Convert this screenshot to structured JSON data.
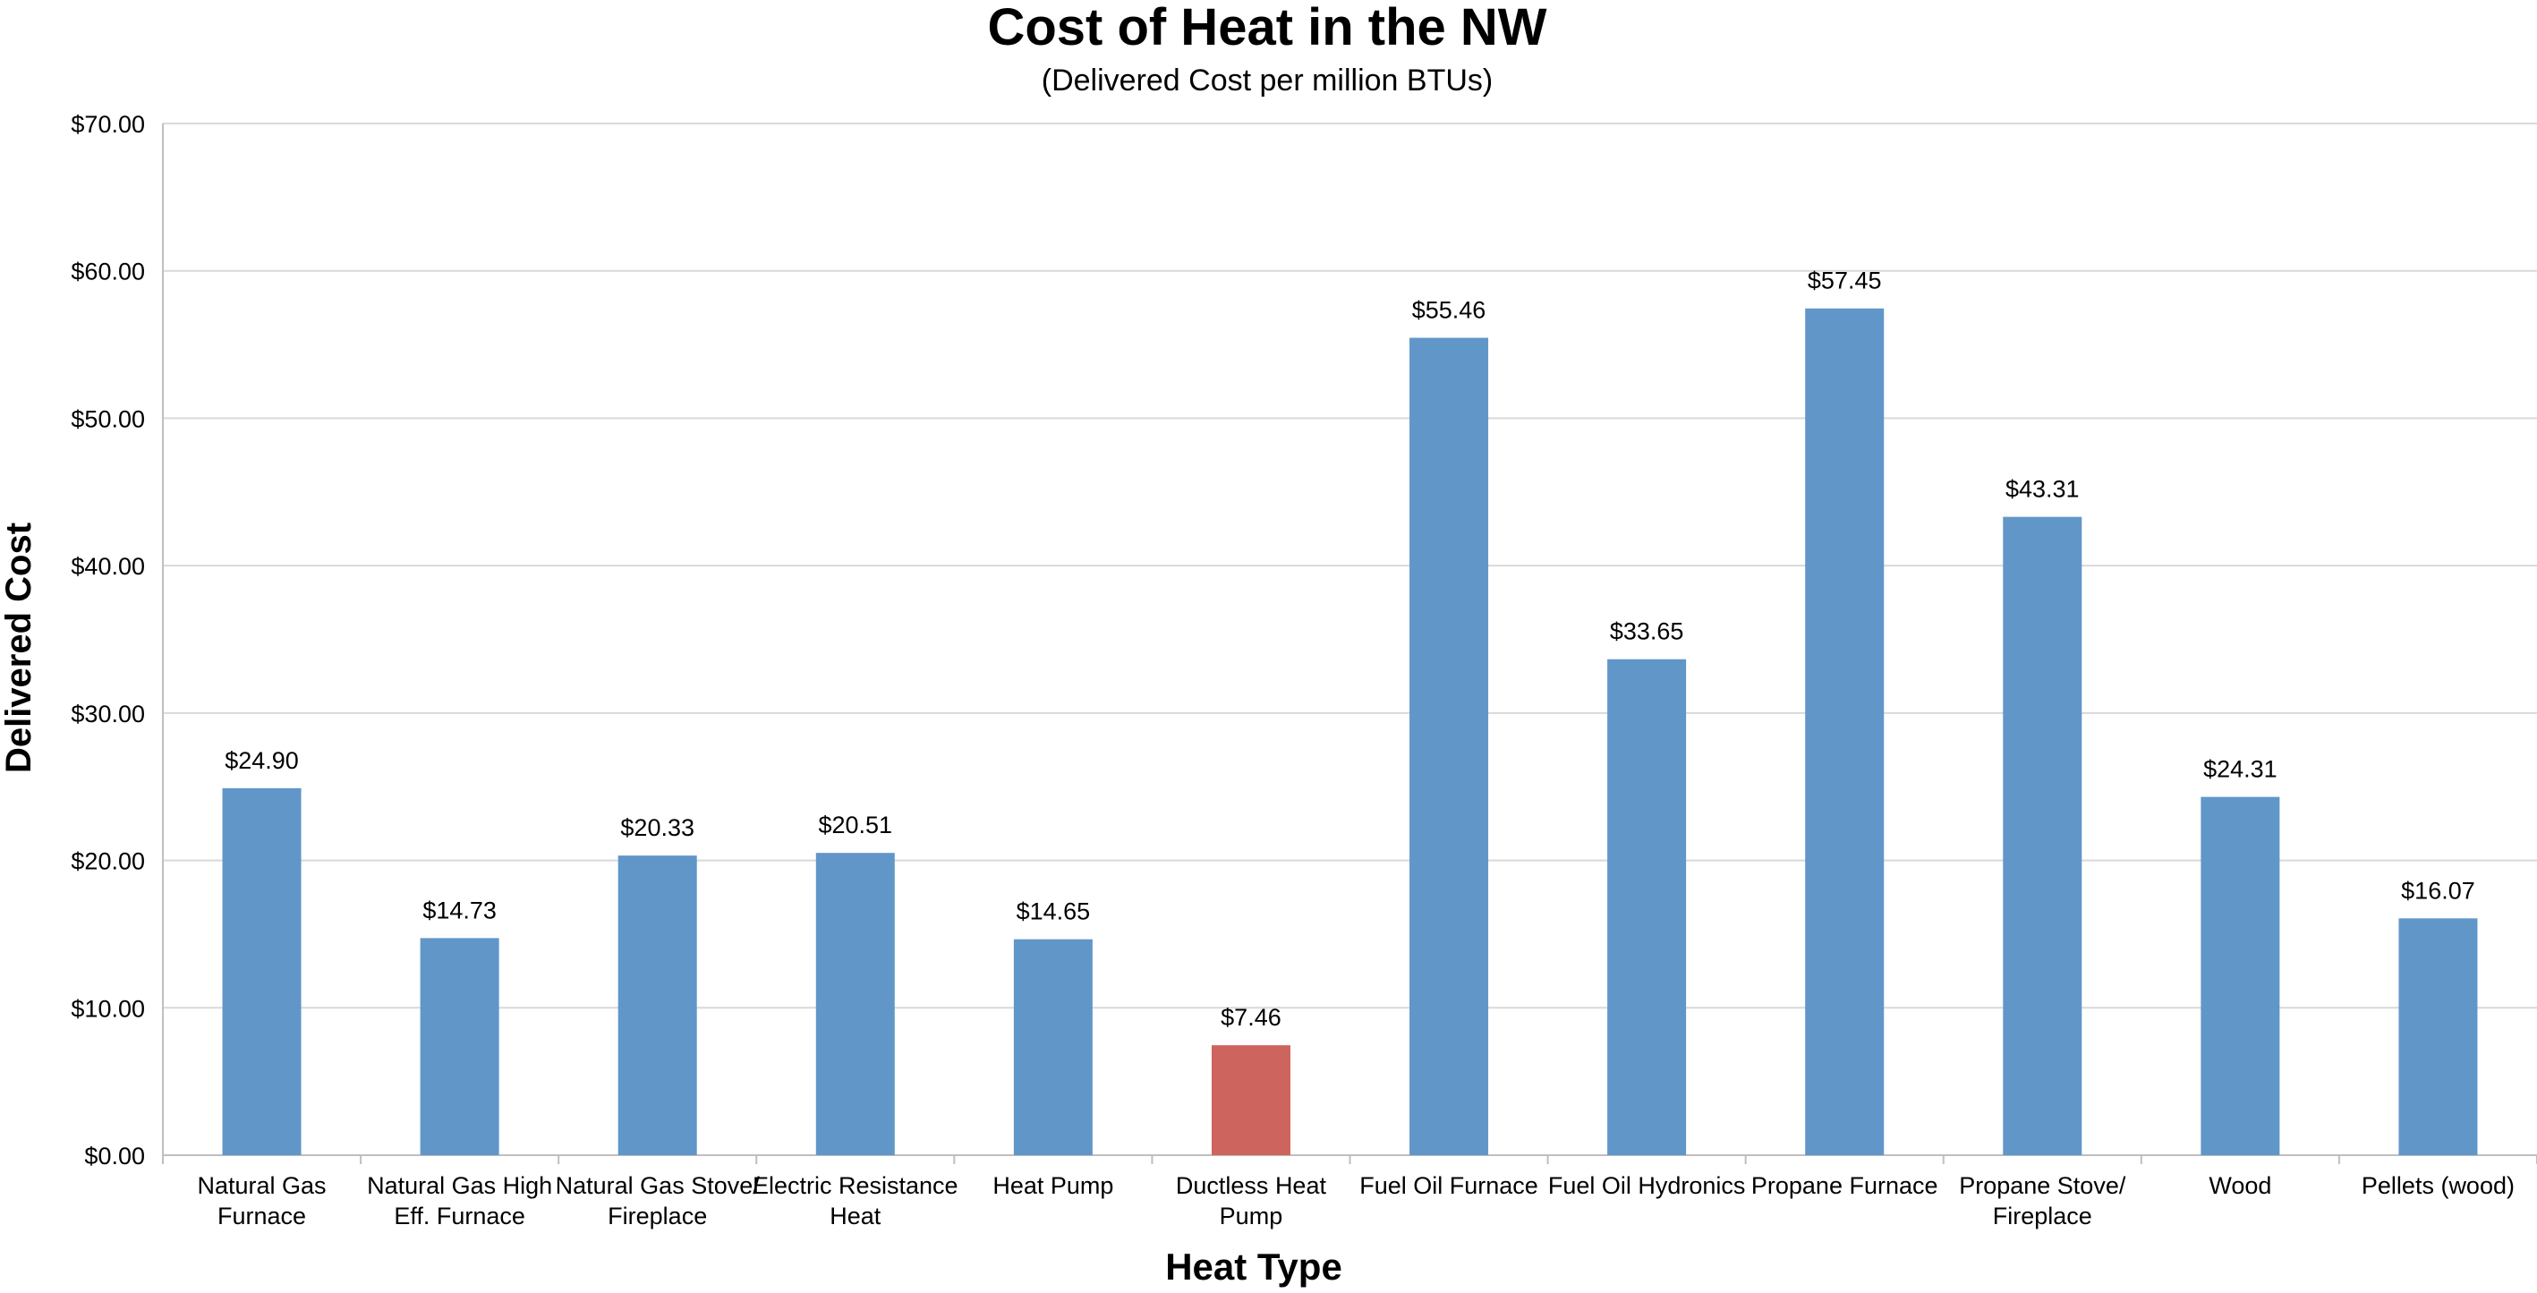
{
  "chart_data": {
    "type": "bar",
    "title": "Cost of Heat in the NW",
    "subtitle": "(Delivered Cost per million BTUs)",
    "xlabel": "Heat Type",
    "ylabel": "Delivered Cost",
    "ylim": [
      0,
      70
    ],
    "yticks": [
      "$0.00",
      "$10.00",
      "$20.00",
      "$30.00",
      "$40.00",
      "$50.00",
      "$60.00",
      "$70.00"
    ],
    "grid": true,
    "legend": "none",
    "categories": [
      [
        "Natural Gas",
        "Furnace"
      ],
      [
        "Natural Gas High",
        "Eff. Furnace"
      ],
      [
        "Natural Gas Stove/",
        "Fireplace"
      ],
      [
        "Electric Resistance",
        "Heat"
      ],
      [
        "Heat Pump"
      ],
      [
        "Ductless Heat",
        "Pump"
      ],
      [
        "Fuel Oil Furnace"
      ],
      [
        "Fuel Oil Hydronics"
      ],
      [
        "Propane Furnace"
      ],
      [
        "Propane Stove/",
        "Fireplace"
      ],
      [
        "Wood"
      ],
      [
        "Pellets (wood)"
      ]
    ],
    "values": [
      24.9,
      14.73,
      20.33,
      20.51,
      14.65,
      7.46,
      55.46,
      33.65,
      57.45,
      43.31,
      24.31,
      16.07
    ],
    "data_labels": [
      "$24.90",
      "$14.73",
      "$20.33",
      "$20.51",
      "$14.65",
      "$7.46",
      "$55.46",
      "$33.65",
      "$57.45",
      "$43.31",
      "$24.31",
      "$16.07"
    ],
    "colors": {
      "bar": "#6196C9",
      "highlight": "#CD645D",
      "grid": "#D9D9D9",
      "axis": "#BFBFBF"
    },
    "highlight_index": 5
  }
}
